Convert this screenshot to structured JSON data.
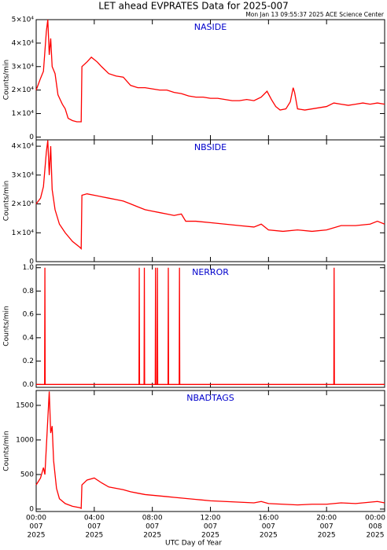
{
  "header": {
    "title": "LET ahead EVPRATES Data for 2025-007",
    "subtitle": "Mon Jan 13 09:55:37 2025 ACE Science Center",
    "xlabel": "UTC Day of Year"
  },
  "chart_data": [
    {
      "type": "line",
      "title": "NASIDE",
      "ylabel": "Counts/min",
      "xlim": [
        0,
        24
      ],
      "xticks": [
        0,
        4,
        8,
        12,
        16,
        20,
        24
      ],
      "ylim": [
        -1200,
        50000
      ],
      "yticks": [
        0,
        {
          "value": 10000,
          "label": "1×10⁴"
        },
        {
          "value": 20000,
          "label": "2×10⁴"
        },
        {
          "value": 30000,
          "label": "3×10⁴"
        },
        {
          "value": 40000,
          "label": "4×10⁴"
        },
        {
          "value": 50000,
          "label": "5×10⁴"
        }
      ],
      "x": [
        0,
        0.3,
        0.5,
        0.7,
        0.8,
        0.9,
        1.0,
        1.1,
        1.3,
        1.5,
        1.8,
        2.0,
        2.2,
        2.5,
        2.8,
        3.1,
        3.15,
        3.5,
        3.8,
        4.2,
        4.5,
        5.0,
        5.5,
        6.0,
        6.5,
        7.0,
        7.5,
        8.0,
        8.5,
        9.0,
        9.5,
        10.0,
        10.5,
        11.0,
        11.5,
        12.0,
        12.5,
        13.0,
        13.5,
        14.0,
        14.5,
        15.0,
        15.5,
        15.9,
        16.2,
        16.5,
        16.8,
        17.2,
        17.5,
        17.7,
        17.8,
        18.0,
        18.5,
        19.0,
        19.5,
        20.0,
        20.5,
        21.0,
        21.5,
        22.0,
        22.5,
        23.0,
        23.5,
        24.0
      ],
      "series": [
        {
          "color": "#ff0000",
          "values": [
            20000,
            25000,
            28000,
            45000,
            50000,
            35000,
            42000,
            30000,
            27000,
            18000,
            14000,
            12000,
            8000,
            7000,
            6500,
            6500,
            30000,
            32000,
            34000,
            32000,
            30000,
            27000,
            26000,
            25500,
            22000,
            21000,
            21000,
            20500,
            20000,
            20000,
            19000,
            18500,
            17500,
            17000,
            17000,
            16500,
            16500,
            16000,
            15500,
            15500,
            16000,
            15500,
            17000,
            19500,
            16000,
            13000,
            11500,
            12000,
            15000,
            21000,
            19000,
            12000,
            11500,
            12000,
            12500,
            13000,
            14500,
            14000,
            13500,
            14000,
            14500,
            14000,
            14500,
            14000
          ]
        }
      ]
    },
    {
      "type": "line",
      "title": "NBSIDE",
      "ylabel": "Counts/min",
      "xlim": [
        0,
        24
      ],
      "xticks": [
        0,
        4,
        8,
        12,
        16,
        20,
        24
      ],
      "ylim": [
        0,
        42200
      ],
      "yticks": [
        0,
        {
          "value": 10000,
          "label": "1×10⁴"
        },
        {
          "value": 20000,
          "label": "2×10⁴"
        },
        {
          "value": 30000,
          "label": "3×10⁴"
        },
        {
          "value": 40000,
          "label": "4×10⁴"
        }
      ],
      "x": [
        0,
        0.3,
        0.5,
        0.7,
        0.8,
        0.9,
        1.0,
        1.1,
        1.3,
        1.6,
        2.0,
        2.5,
        3.0,
        3.1,
        3.15,
        3.5,
        4.0,
        4.5,
        5.0,
        5.5,
        6.0,
        6.5,
        7.0,
        7.5,
        8.0,
        8.5,
        9.0,
        9.5,
        10.0,
        10.3,
        11.0,
        12.0,
        13.0,
        14.0,
        15.0,
        15.5,
        16.0,
        17.0,
        18.0,
        19.0,
        20.0,
        21.0,
        22.0,
        23.0,
        23.5,
        24.0
      ],
      "series": [
        {
          "color": "#ff0000",
          "values": [
            20000,
            22000,
            26000,
            38000,
            42000,
            30000,
            40000,
            25000,
            18000,
            13000,
            10000,
            7000,
            5000,
            4500,
            23000,
            23500,
            23000,
            22500,
            22000,
            21500,
            21000,
            20000,
            19000,
            18000,
            17500,
            17000,
            16500,
            16000,
            16500,
            14000,
            14000,
            13500,
            13000,
            12500,
            12000,
            13000,
            11000,
            10500,
            11000,
            10500,
            11000,
            12500,
            12500,
            13000,
            14000,
            13000
          ]
        }
      ]
    },
    {
      "type": "line",
      "title": "NERROR",
      "ylabel": "Counts/min",
      "xlim": [
        0,
        24
      ],
      "xticks": [
        0,
        4,
        8,
        12,
        16,
        20,
        24
      ],
      "ylim": [
        -0.025,
        1.025
      ],
      "yticks": [
        {
          "value": 0,
          "label": "0.0"
        },
        0.2,
        0.4,
        0.6,
        0.8,
        {
          "value": 1,
          "label": "1.0"
        }
      ],
      "x": [
        0,
        0.58,
        0.6,
        0.62,
        7.08,
        7.1,
        7.12,
        7.43,
        7.45,
        7.47,
        8.2,
        8.22,
        8.24,
        8.33,
        8.35,
        8.37,
        9.08,
        9.1,
        9.12,
        9.85,
        9.87,
        9.89,
        20.5,
        20.52,
        20.54,
        24
      ],
      "series": [
        {
          "color": "#ff0000",
          "values": [
            0,
            0,
            1,
            0,
            0,
            1,
            0,
            0,
            1,
            0,
            0,
            1,
            0,
            0,
            1,
            0,
            0,
            1,
            0,
            0,
            1,
            0,
            0,
            1,
            0,
            0
          ]
        }
      ]
    },
    {
      "type": "line",
      "title": "NBADTAGS",
      "ylabel": "Counts/min",
      "xlim": [
        0,
        24
      ],
      "xticks": [
        {
          "value": 0,
          "label": [
            "00:00",
            "007",
            "2025"
          ]
        },
        {
          "value": 4,
          "label": [
            "04:00",
            "007",
            "2025"
          ]
        },
        {
          "value": 8,
          "label": [
            "08:00",
            "007",
            "2025"
          ]
        },
        {
          "value": 12,
          "label": [
            "12:00",
            "007",
            "2025"
          ]
        },
        {
          "value": 16,
          "label": [
            "16:00",
            "007",
            "2025"
          ]
        },
        {
          "value": 20,
          "label": [
            "20:00",
            "007",
            "2025"
          ]
        },
        {
          "value": 24,
          "label": [
            "00:00",
            "008",
            "2025"
          ]
        }
      ],
      "ylim": [
        -35,
        1715
      ],
      "yticks": [
        0,
        500,
        1000,
        1500
      ],
      "x": [
        0,
        0.3,
        0.5,
        0.6,
        0.8,
        0.9,
        1.0,
        1.1,
        1.2,
        1.4,
        1.6,
        2.0,
        2.5,
        3.0,
        3.1,
        3.15,
        3.5,
        4.0,
        4.5,
        5.0,
        5.5,
        6.0,
        6.5,
        7.0,
        7.5,
        8.0,
        8.5,
        9.0,
        9.5,
        10.0,
        11.0,
        12.0,
        13.0,
        14.0,
        15.0,
        15.5,
        16.0,
        17.0,
        18.0,
        19.0,
        20.0,
        21.0,
        22.0,
        23.0,
        23.5,
        24.0
      ],
      "series": [
        {
          "color": "#ff0000",
          "values": [
            350,
            450,
            600,
            500,
            1300,
            1700,
            1100,
            1200,
            700,
            300,
            150,
            80,
            40,
            20,
            10,
            350,
            420,
            450,
            380,
            320,
            300,
            280,
            250,
            230,
            210,
            200,
            190,
            180,
            170,
            160,
            140,
            120,
            110,
            100,
            90,
            110,
            80,
            70,
            60,
            70,
            70,
            90,
            80,
            100,
            110,
            90
          ]
        }
      ]
    }
  ]
}
